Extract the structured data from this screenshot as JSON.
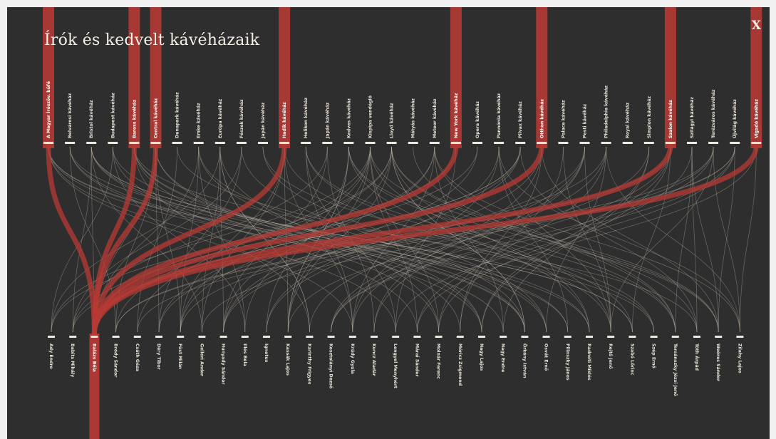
{
  "title": "Írók és kedvelt kávéházaik",
  "close_label": "X",
  "colors": {
    "background": "#2e2e2e",
    "highlight": "#b83a34",
    "link": "#bdb3a6",
    "text": "#e6e1d5"
  },
  "cafes": [
    {
      "name": "A Magyar Írószöv. büfé",
      "highlight": true
    },
    {
      "name": "Belvárosi kávéház",
      "highlight": false
    },
    {
      "name": "Bristol kávéház",
      "highlight": false
    },
    {
      "name": "Budapest kávéház",
      "highlight": false
    },
    {
      "name": "Baross kávéház",
      "highlight": true
    },
    {
      "name": "Central kávéház",
      "highlight": true
    },
    {
      "name": "Dunapark kávéház",
      "highlight": false
    },
    {
      "name": "Emke kávéház",
      "highlight": false
    },
    {
      "name": "Európa kávéház",
      "highlight": false
    },
    {
      "name": "Fészek kávéház",
      "highlight": false
    },
    {
      "name": "Japán kávéház",
      "highlight": false
    },
    {
      "name": "Hadik kávéház",
      "highlight": true
    },
    {
      "name": "Helikon kávéház",
      "highlight": false
    },
    {
      "name": "Japán kávéház",
      "highlight": false
    },
    {
      "name": "Kedves kávéház",
      "highlight": false
    },
    {
      "name": "Kispipa vendéglő",
      "highlight": false
    },
    {
      "name": "Lloyd kávéház",
      "highlight": false
    },
    {
      "name": "Mátyás kávéház",
      "highlight": false
    },
    {
      "name": "Meteor kávéház",
      "highlight": false
    },
    {
      "name": "New York kávéház",
      "highlight": true
    },
    {
      "name": "Opera kávéház",
      "highlight": false
    },
    {
      "name": "Pannónia kávéház",
      "highlight": false
    },
    {
      "name": "Pilvax kávéház",
      "highlight": false
    },
    {
      "name": "Otthon kávéház",
      "highlight": true
    },
    {
      "name": "Palace kávéház",
      "highlight": false
    },
    {
      "name": "Pesti kávéház",
      "highlight": false
    },
    {
      "name": "Philadelphia kávéház",
      "highlight": false
    },
    {
      "name": "Royal kávéház",
      "highlight": false
    },
    {
      "name": "Simplon kávéház",
      "highlight": false
    },
    {
      "name": "Szalon kávéház",
      "highlight": true
    },
    {
      "name": "Szilágyi kávéház",
      "highlight": false
    },
    {
      "name": "Terézváros kávéház",
      "highlight": false
    },
    {
      "name": "Újvilág kávéház",
      "highlight": false
    },
    {
      "name": "Vigadó kávéház",
      "highlight": true
    }
  ],
  "writers": [
    {
      "name": "Ady Endre",
      "highlight": false
    },
    {
      "name": "Babits Mihály",
      "highlight": false
    },
    {
      "name": "Balázs Béla",
      "highlight": true
    },
    {
      "name": "Bródy Sándor",
      "highlight": false
    },
    {
      "name": "Csáth Géza",
      "highlight": false
    },
    {
      "name": "Déry Tibor",
      "highlight": false
    },
    {
      "name": "Füst Milán",
      "highlight": false
    },
    {
      "name": "Gelléri Andor",
      "highlight": false
    },
    {
      "name": "Hunyady Sándor",
      "highlight": false
    },
    {
      "name": "Illés Béla",
      "highlight": false
    },
    {
      "name": "Ignotus",
      "highlight": false
    },
    {
      "name": "Kassák Lajos",
      "highlight": false
    },
    {
      "name": "Karinthy Frigyes",
      "highlight": false
    },
    {
      "name": "Kosztolányi Dezső",
      "highlight": false
    },
    {
      "name": "Krúdy Gyula",
      "highlight": false
    },
    {
      "name": "Kuncz Aladár",
      "highlight": false
    },
    {
      "name": "Lengyel Menyhért",
      "highlight": false
    },
    {
      "name": "Márai Sándor",
      "highlight": false
    },
    {
      "name": "Molnár Ferenc",
      "highlight": false
    },
    {
      "name": "Móricz Zsigmond",
      "highlight": false
    },
    {
      "name": "Nagy Lajos",
      "highlight": false
    },
    {
      "name": "Nagy Endre",
      "highlight": false
    },
    {
      "name": "Örkény István",
      "highlight": false
    },
    {
      "name": "Osvát Ernő",
      "highlight": false
    },
    {
      "name": "Pilinszky János",
      "highlight": false
    },
    {
      "name": "Radnóti Miklós",
      "highlight": false
    },
    {
      "name": "Rejtő Jenő",
      "highlight": false
    },
    {
      "name": "Szabó Lőrinc",
      "highlight": false
    },
    {
      "name": "Szép Ernő",
      "highlight": false
    },
    {
      "name": "Tersánszky Józsi Jenő",
      "highlight": false
    },
    {
      "name": "Tóth Árpád",
      "highlight": false
    },
    {
      "name": "Weöres Sándor",
      "highlight": false
    },
    {
      "name": "Zilahy Lajos",
      "highlight": false
    }
  ]
}
